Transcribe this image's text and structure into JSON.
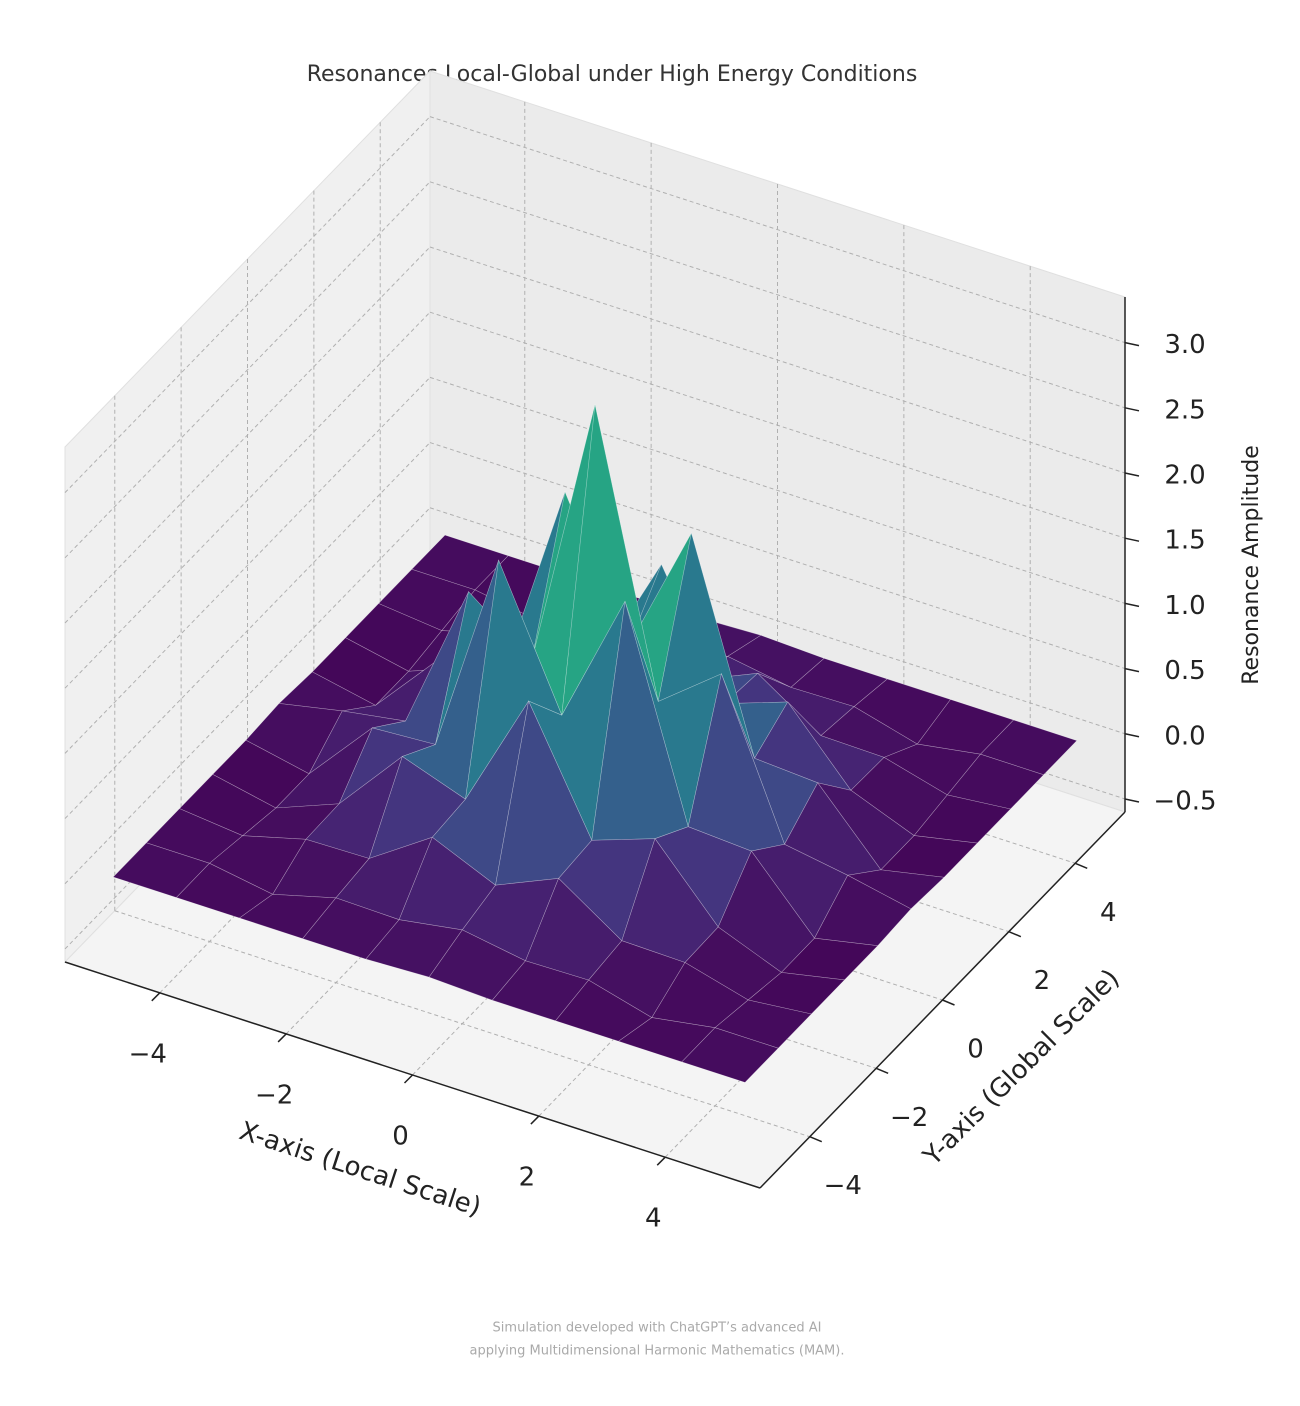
{
  "chart_data": {
    "type": "surface",
    "title": "Resonances Local-Global under High Energy Conditions",
    "xlabel": "X-axis (Local Scale)",
    "ylabel": "Y-axis (Global Scale)",
    "zlabel": "Resonance Amplitude",
    "footnote": [
      "Simulation developed with ChatGPT’s advanced AI",
      "applying Multidimensional Harmonic Mathematics (MAM)."
    ],
    "colormap": "viridis",
    "grid": true,
    "x": [
      -5,
      -4,
      -3,
      -2,
      -1,
      0,
      1,
      2,
      3,
      4,
      5
    ],
    "y": [
      -5,
      -4,
      -3,
      -2,
      -1,
      0,
      1,
      2,
      3,
      4,
      5
    ],
    "z": [
      [
        0,
        0,
        0,
        0,
        0,
        0.02,
        0,
        0,
        0,
        0,
        0
      ],
      [
        0,
        0,
        -0.08,
        0.05,
        0.04,
        0.12,
        0.04,
        0.05,
        -0.08,
        0,
        0
      ],
      [
        0,
        -0.05,
        0.08,
        0.09,
        0.41,
        0.2,
        0.41,
        0.09,
        0.08,
        -0.05,
        0
      ],
      [
        0,
        -0.1,
        0.09,
        0.61,
        0.44,
        1.35,
        0.44,
        0.61,
        0.09,
        -0.1,
        0
      ],
      [
        0,
        -0.1,
        0.41,
        0.44,
        2.01,
        0.98,
        2.01,
        0.44,
        0.41,
        -0.1,
        0
      ],
      [
        0.02,
        0.12,
        0.2,
        1.35,
        0.98,
        3.1,
        0.98,
        1.35,
        0.2,
        0.12,
        0.02
      ],
      [
        0,
        -0.1,
        0.41,
        0.44,
        2.01,
        0.98,
        2.01,
        0.44,
        0.41,
        -0.1,
        0
      ],
      [
        0,
        -0.1,
        0.09,
        0.61,
        0.44,
        1.35,
        0.44,
        0.61,
        0.09,
        -0.1,
        0
      ],
      [
        0,
        -0.05,
        0.08,
        0.09,
        0.41,
        0.2,
        0.41,
        0.09,
        0.08,
        -0.05,
        0
      ],
      [
        0,
        0,
        -0.08,
        0.05,
        0.04,
        0.12,
        0.04,
        0.05,
        -0.08,
        0,
        0
      ],
      [
        0,
        0,
        0,
        0,
        0,
        0.02,
        0,
        0,
        0,
        0,
        0
      ]
    ],
    "xlim": [
      -5.5,
      5.5
    ],
    "ylim": [
      -5.5,
      5.5
    ],
    "zlim": [
      -0.6,
      3.35
    ],
    "xticks": [
      {
        "value": -4,
        "label": "−4"
      },
      {
        "value": -2,
        "label": "−2"
      },
      0,
      2,
      4
    ],
    "yticks": [
      {
        "value": -4,
        "label": "−4"
      },
      {
        "value": -2,
        "label": "−2"
      },
      0,
      2,
      4
    ],
    "zticks": [
      {
        "value": -0.5,
        "label": "−0.5"
      },
      {
        "value": 0,
        "label": "0.0"
      },
      0.5,
      {
        "value": 1,
        "label": "1.0"
      },
      1.5,
      {
        "value": 2,
        "label": "2.0"
      },
      2.5,
      {
        "value": 3,
        "label": "3.0"
      }
    ]
  }
}
